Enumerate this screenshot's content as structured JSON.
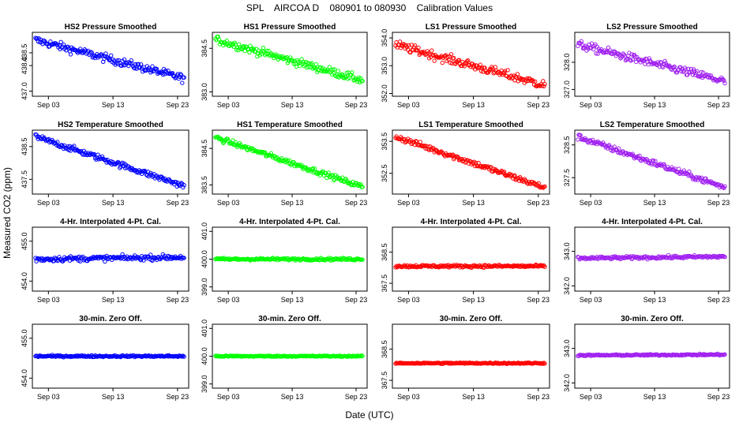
{
  "figure": {
    "title": "SPL    AIRCOA D    080901 to 080930    Calibration Values",
    "xlabel": "Date (UTC)",
    "ylabel": "Measured CO2 (ppm)"
  },
  "colors": {
    "HS2": "#0000ff",
    "HS1": "#00ff00",
    "LS1": "#ff0000",
    "LS2": "#a020f0"
  },
  "x_ticks": [
    "Sep 03",
    "Sep 13",
    "Sep 23"
  ],
  "chart_data": [
    {
      "type": "scatter",
      "title": "HS2 Pressure Smoothed",
      "series": "HS2",
      "ylim": [
        436.8,
        439.3
      ],
      "yticks": [
        "437.0",
        "438.0",
        "438.5"
      ],
      "trend": [
        439.0,
        437.5
      ],
      "spread": 0.45,
      "x_range": [
        "Sep 01",
        "Sep 24"
      ]
    },
    {
      "type": "scatter",
      "title": "HS1 Pressure Smoothed",
      "series": "HS1",
      "ylim": [
        382.85,
        385.05
      ],
      "yticks": [
        "383.0",
        "384.5"
      ],
      "trend": [
        384.8,
        383.4
      ],
      "spread": 0.4,
      "x_range": [
        "Sep 01",
        "Sep 24"
      ]
    },
    {
      "type": "scatter",
      "title": "LS1 Pressure Smoothed",
      "series": "LS1",
      "ylim": [
        351.9,
        354.2
      ],
      "yticks": [
        "352.0",
        "353.0",
        "354.0"
      ],
      "trend": [
        353.75,
        352.3
      ],
      "spread": 0.45,
      "x_range": [
        "Sep 01",
        "Sep 24"
      ]
    },
    {
      "type": "scatter",
      "title": "LS2 Pressure Smoothed",
      "series": "LS2",
      "ylim": [
        326.75,
        329.1
      ],
      "yticks": [
        "327.0",
        "328.0"
      ],
      "trend": [
        328.65,
        327.3
      ],
      "spread": 0.45,
      "x_range": [
        "Sep 01",
        "Sep 24"
      ]
    },
    {
      "type": "scatter",
      "title": "HS2 Temperature Smoothed",
      "series": "HS2",
      "ylim": [
        437.05,
        439.0
      ],
      "yticks": [
        "437.5",
        "438.5"
      ],
      "trend": [
        438.8,
        437.3
      ],
      "spread": 0.25,
      "x_range": [
        "Sep 01",
        "Sep 24"
      ]
    },
    {
      "type": "scatter",
      "title": "HS1 Temperature Smoothed",
      "series": "HS1",
      "ylim": [
        383.25,
        385.0
      ],
      "yticks": [
        "383.5",
        "384.5"
      ],
      "trend": [
        384.8,
        383.45
      ],
      "spread": 0.2,
      "x_range": [
        "Sep 01",
        "Sep 24"
      ]
    },
    {
      "type": "scatter",
      "title": "LS1 Temperature Smoothed",
      "series": "LS1",
      "ylim": [
        351.85,
        353.85
      ],
      "yticks": [
        "352.5",
        "353.5"
      ],
      "trend": [
        353.65,
        352.05
      ],
      "spread": 0.25,
      "x_range": [
        "Sep 01",
        "Sep 24"
      ]
    },
    {
      "type": "scatter",
      "title": "LS2 Temperature Smoothed",
      "series": "LS2",
      "ylim": [
        327.0,
        328.95
      ],
      "yticks": [
        "327.5",
        "328.5"
      ],
      "trend": [
        328.75,
        327.2
      ],
      "spread": 0.25,
      "x_range": [
        "Sep 01",
        "Sep 24"
      ]
    },
    {
      "type": "scatter",
      "title": "4-Hr. Interpolated 4-Pt. Cal.",
      "series": "HS2",
      "ylim": [
        453.75,
        455.35
      ],
      "yticks": [
        "454.0",
        "455.0"
      ],
      "trend": [
        454.55,
        454.6
      ],
      "spread": 0.18,
      "x_range": [
        "Sep 01",
        "Sep 24"
      ]
    },
    {
      "type": "scatter",
      "title": "4-Hr. Interpolated 4-Pt. Cal.",
      "series": "HS1",
      "ylim": [
        398.85,
        401.15
      ],
      "yticks": [
        "399.0",
        "400.0",
        "401.0"
      ],
      "trend": [
        400.0,
        400.0
      ],
      "spread": 0.12,
      "x_range": [
        "Sep 01",
        "Sep 24"
      ]
    },
    {
      "type": "scatter",
      "title": "4-Hr. Interpolated 4-Pt. Cal.",
      "series": "LS1",
      "ylim": [
        367.25,
        369.3
      ],
      "yticks": [
        "367.5",
        "368.5"
      ],
      "trend": [
        368.05,
        368.05
      ],
      "spread": 0.12,
      "x_range": [
        "Sep 01",
        "Sep 24"
      ]
    },
    {
      "type": "scatter",
      "title": "4-Hr. Interpolated 4-Pt. Cal.",
      "series": "LS2",
      "ylim": [
        341.85,
        343.7
      ],
      "yticks": [
        "342.0",
        "343.0"
      ],
      "trend": [
        342.8,
        342.85
      ],
      "spread": 0.12,
      "x_range": [
        "Sep 01",
        "Sep 24"
      ]
    },
    {
      "type": "scatter",
      "title": "30-min. Zero Off.",
      "series": "HS2",
      "ylim": [
        453.75,
        455.35
      ],
      "yticks": [
        "454.0",
        "455.0"
      ],
      "trend": [
        454.55,
        454.55
      ],
      "spread": 0.06,
      "x_range": [
        "Sep 01",
        "Sep 24"
      ]
    },
    {
      "type": "scatter",
      "title": "30-min. Zero Off.",
      "series": "HS1",
      "ylim": [
        398.85,
        401.15
      ],
      "yticks": [
        "399.0",
        "400.0",
        "401.0"
      ],
      "trend": [
        400.0,
        400.0
      ],
      "spread": 0.06,
      "x_range": [
        "Sep 01",
        "Sep 24"
      ]
    },
    {
      "type": "scatter",
      "title": "30-min. Zero Off.",
      "series": "LS1",
      "ylim": [
        367.25,
        369.3
      ],
      "yticks": [
        "367.5",
        "368.5"
      ],
      "trend": [
        368.05,
        368.05
      ],
      "spread": 0.06,
      "x_range": [
        "Sep 01",
        "Sep 24"
      ]
    },
    {
      "type": "scatter",
      "title": "30-min. Zero Off.",
      "series": "LS2",
      "ylim": [
        341.85,
        343.7
      ],
      "yticks": [
        "342.0",
        "343.0"
      ],
      "trend": [
        342.8,
        342.82
      ],
      "spread": 0.06,
      "x_range": [
        "Sep 01",
        "Sep 24"
      ]
    }
  ]
}
